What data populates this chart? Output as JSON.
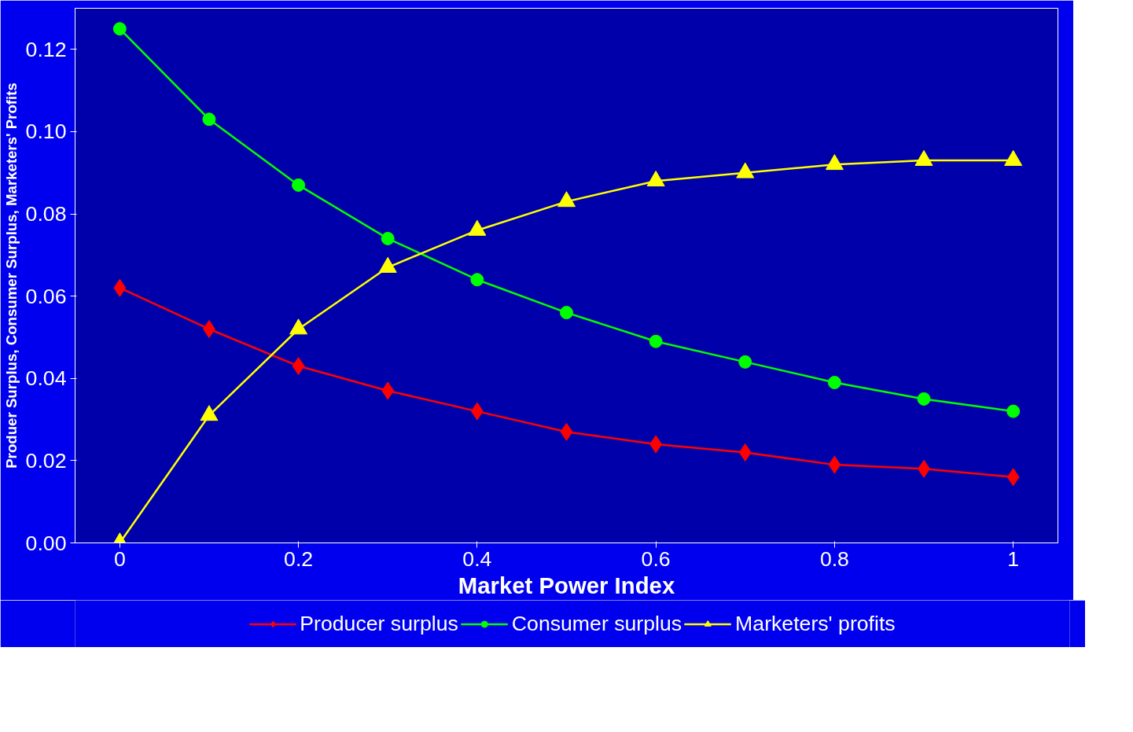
{
  "chart_data": {
    "type": "line",
    "xlabel": "Market Power Index",
    "ylabel": "Produer Surplus, Consumer Surplus, Marketers' Profits",
    "x": [
      0,
      0.1,
      0.2,
      0.3,
      0.4,
      0.5,
      0.6,
      0.7,
      0.8,
      0.9,
      1
    ],
    "series": [
      {
        "name": "Producer surplus",
        "color": "#ff0000",
        "marker": "diamond",
        "values": [
          0.062,
          0.052,
          0.043,
          0.037,
          0.032,
          0.027,
          0.024,
          0.022,
          0.019,
          0.018,
          0.016
        ]
      },
      {
        "name": "Consumer surplus",
        "color": "#00ff00",
        "marker": "circle",
        "values": [
          0.125,
          0.103,
          0.087,
          0.074,
          0.064,
          0.056,
          0.049,
          0.044,
          0.039,
          0.035,
          0.032
        ]
      },
      {
        "name": "Marketers' profits",
        "color": "#ffff00",
        "marker": "triangle",
        "values": [
          0,
          0.031,
          0.052,
          0.067,
          0.076,
          0.083,
          0.088,
          0.09,
          0.092,
          0.093,
          0.093
        ]
      }
    ],
    "xlim": [
      -0.05,
      1.05
    ],
    "xticks": [
      0,
      0.2,
      0.4,
      0.6,
      0.8,
      1
    ],
    "ylim": [
      0,
      0.13
    ],
    "yticks": [
      {
        "value": 0,
        "label": "0.00"
      },
      {
        "value": 0.02,
        "label": "0.02"
      },
      {
        "value": 0.04,
        "label": "0.04"
      },
      {
        "value": 0.06,
        "label": "0.06"
      },
      {
        "value": 0.08,
        "label": "0.08"
      },
      {
        "value": 0.1,
        "label": "0.10"
      },
      {
        "value": 0.12,
        "label": "0.12"
      }
    ],
    "grid": false,
    "legend": "bottom"
  }
}
